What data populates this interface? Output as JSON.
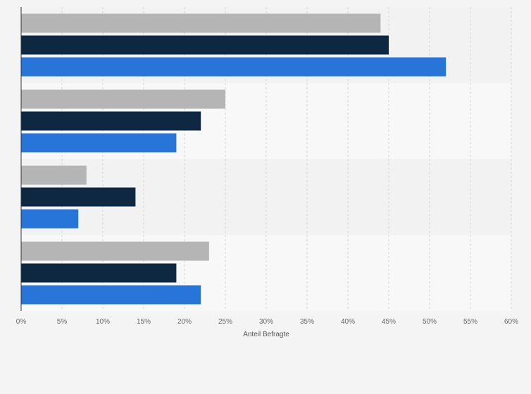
{
  "chart_data": {
    "type": "bar",
    "orientation": "horizontal",
    "title": "",
    "xlabel": "Anteil Befragte",
    "ylabel": "",
    "xlim": [
      0,
      60
    ],
    "xticks": [
      0,
      5,
      10,
      15,
      20,
      25,
      30,
      35,
      40,
      45,
      50,
      55,
      60
    ],
    "tick_suffix": "%",
    "grid": true,
    "categories": [
      "",
      "",
      "",
      ""
    ],
    "series": [
      {
        "color": "#b5b5b5",
        "values": [
          44,
          25,
          8,
          23
        ]
      },
      {
        "color": "#0e2841",
        "values": [
          45,
          22,
          14,
          19
        ]
      },
      {
        "color": "#2875d9",
        "values": [
          52,
          19,
          7,
          22
        ]
      }
    ],
    "band_colors": [
      "#f2f2f2",
      "#f8f8f8"
    ],
    "axis_color": "#333333",
    "grid_color": "#d4d4d4"
  }
}
